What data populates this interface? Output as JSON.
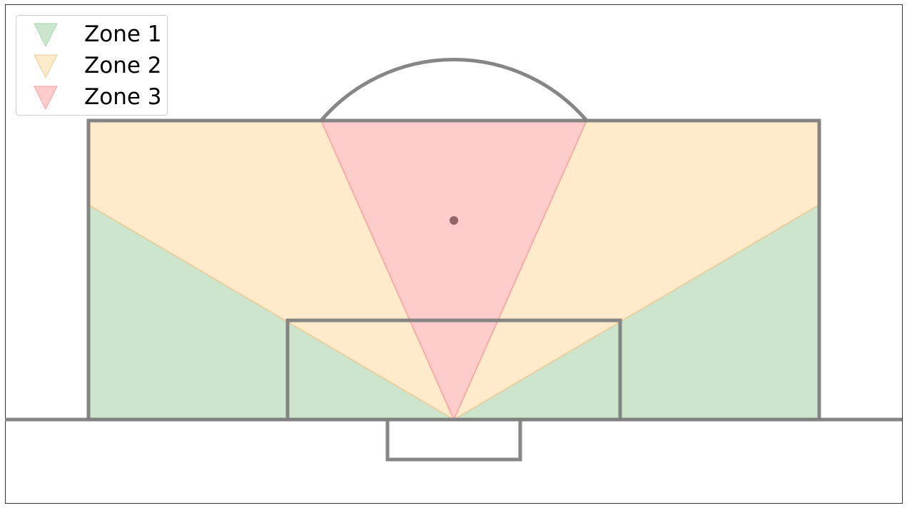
{
  "legend": {
    "items": [
      {
        "label": "Zone 1",
        "color": "#cce5cc",
        "marker": "triangle-down-icon"
      },
      {
        "label": "Zone 2",
        "color": "#ffebcc",
        "marker": "triangle-down-icon"
      },
      {
        "label": "Zone 3",
        "color": "#ffcccc",
        "marker": "triangle-down-icon"
      }
    ]
  },
  "colors": {
    "pitch_lines": "#808080",
    "zone1_fill": "#cce5cc",
    "zone1_edge": "#a8d8a8",
    "zone2_fill": "#ffebcc",
    "zone2_edge": "#f0c890",
    "zone3_fill": "#ffcccc",
    "zone3_edge": "#ff9d9d",
    "penalty_spot": "#936363",
    "frame": "#333333"
  }
}
